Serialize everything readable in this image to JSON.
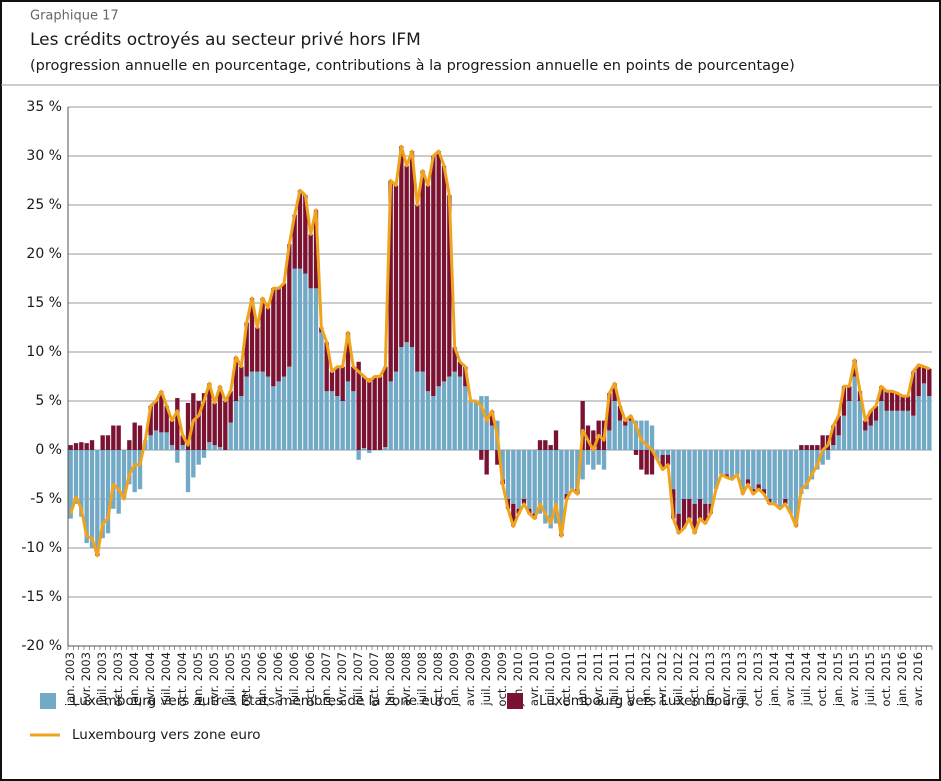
{
  "chart_data": {
    "type": "bar",
    "caption": "Graphique 17",
    "title": "Les crédits octroyés au secteur privé hors IFM",
    "subtitle": "(progression annuelle en pourcentage, contributions à la progression annuelle en points de pourcentage)",
    "categories": [
      "jan. 2003",
      null,
      null,
      "avr. 2003",
      null,
      null,
      "juil. 2003",
      null,
      null,
      "oct. 2003",
      null,
      null,
      "jan. 2004",
      null,
      null,
      "avr. 2004",
      null,
      null,
      "juil. 2004",
      null,
      null,
      "oct. 2004",
      null,
      null,
      "jan. 2005",
      null,
      null,
      "avr. 2005",
      null,
      null,
      "juil. 2005",
      null,
      null,
      "oct. 2005",
      null,
      null,
      "jan. 2006",
      null,
      null,
      "avr. 2006",
      null,
      null,
      "juil. 2006",
      null,
      null,
      "oct. 2006",
      null,
      null,
      "jan. 2007",
      null,
      null,
      "avr. 2007",
      null,
      null,
      "juil. 2007",
      null,
      null,
      "oct. 2007",
      null,
      null,
      "jan. 2008",
      null,
      null,
      "avr. 2008",
      null,
      null,
      "juil. 2008",
      null,
      null,
      "oct. 2008",
      null,
      null,
      "jan. 2009",
      null,
      null,
      "avr. 2009",
      null,
      null,
      "juil. 2009",
      null,
      null,
      "oct. 2009",
      null,
      null,
      "jan. 2010",
      null,
      null,
      "avr. 2010",
      null,
      null,
      "juil. 2010",
      null,
      null,
      "oct. 2010",
      null,
      null,
      "jan. 2011",
      null,
      null,
      "avr. 2011",
      null,
      null,
      "juil. 2011",
      null,
      null,
      "oct. 2011",
      null,
      null,
      "jan. 2012",
      null,
      null,
      "avr. 2012",
      null,
      null,
      "juil. 2012",
      null,
      null,
      "oct. 2012",
      null,
      null,
      "jan. 2013",
      null,
      null,
      "avr. 2013",
      null,
      null,
      "juil. 2013",
      null,
      null,
      "oct. 2013",
      null,
      null,
      "jan. 2014",
      null,
      null,
      "avr. 2014",
      null,
      null,
      "juil. 2014",
      null,
      null,
      "oct. 2014",
      null,
      null,
      "jan. 2015",
      null,
      null,
      "avr. 2015",
      null,
      null,
      "juil. 2015",
      null,
      null,
      "oct. 2015",
      null,
      null,
      "jan. 2016",
      null,
      null,
      "avr. 2016",
      null,
      null
    ],
    "series": [
      {
        "name": "Luxembourg vers autres États membres de la zone euro",
        "color": "#72a9c6",
        "kind": "bar",
        "values": [
          -7,
          -5.5,
          -6.8,
          -9.5,
          -10,
          -10.5,
          -9,
          -8.5,
          -6,
          -6.5,
          -5,
          -3.5,
          -4.3,
          -4,
          1,
          1.5,
          2,
          1.8,
          1.8,
          0.5,
          -1.3,
          0.5,
          -4.3,
          -2.8,
          -1.5,
          -0.8,
          0.8,
          0.5,
          0.3,
          0,
          2.8,
          5,
          5.5,
          7.5,
          8,
          8,
          8,
          7.5,
          6.5,
          7,
          7.5,
          8.5,
          18.5,
          18.5,
          18,
          16.5,
          16.5,
          12,
          6,
          6,
          5.5,
          5,
          7,
          6,
          -1,
          0.2,
          -0.3,
          0,
          0,
          0.3,
          7,
          8,
          10.5,
          11,
          10.5,
          8,
          8,
          6,
          5.5,
          6.5,
          7,
          7.5,
          8,
          7.5,
          6.5,
          5,
          5,
          5.5,
          5.5,
          2.5,
          3,
          -3,
          -5,
          -5.5,
          -6,
          -5,
          -6,
          -6.5,
          -6.5,
          -7.5,
          -8,
          -7.5,
          -8.5,
          -4.5,
          -4,
          -4,
          -3,
          -1.5,
          -2,
          -1.5,
          -2,
          2,
          5,
          3,
          2.5,
          3,
          3,
          3,
          3,
          2.5,
          -1,
          -0.5,
          -0.5,
          -4,
          -6.5,
          -5,
          -5,
          -5.5,
          -5,
          -5.5,
          -5.5,
          -4,
          -2.5,
          -2.5,
          -3,
          -2.5,
          -4.5,
          -3,
          -4,
          -3.5,
          -4,
          -5,
          -5.5,
          -6,
          -5,
          -6.5,
          -7.5,
          -4.5,
          -4,
          -3,
          -2,
          -1.5,
          -1,
          0.5,
          1.5,
          3.5,
          5,
          7.5,
          5,
          2,
          2.5,
          3,
          5,
          4,
          4,
          4,
          4,
          4,
          3.5,
          5.5,
          6.8,
          5.5
        ]
      },
      {
        "name": "Luxembourg vers Luxembourg",
        "color": "#7b1232",
        "kind": "bar",
        "values": [
          0.5,
          0.7,
          0.8,
          0.7,
          1,
          -0.3,
          1.5,
          1.5,
          2.5,
          2.5,
          0,
          1,
          2.8,
          2.5,
          0,
          3,
          3,
          4.2,
          2.7,
          2.5,
          5.3,
          1,
          4.8,
          5.8,
          5,
          5.8,
          6,
          4.3,
          6.2,
          5,
          3.2,
          4.5,
          3,
          5.5,
          7.5,
          4.5,
          7.5,
          7,
          10,
          9.5,
          9.5,
          12.5,
          5.5,
          8,
          8,
          5.5,
          8,
          0.5,
          5,
          2,
          3,
          3.5,
          5,
          2.5,
          9,
          7.3,
          7.3,
          7.5,
          7.5,
          8.2,
          20.5,
          19,
          20.5,
          18,
          20,
          17,
          20.5,
          21,
          24.5,
          24,
          22,
          18.5,
          2.5,
          1.5,
          2,
          0,
          0,
          -1,
          -2.5,
          1.5,
          -1.5,
          -0.5,
          -1,
          -2.3,
          -0.5,
          -0.5,
          -0.5,
          -0.5,
          1,
          1,
          0.5,
          2,
          -0.3,
          -0.5,
          0,
          -0.5,
          5,
          2.5,
          2,
          3,
          3,
          3.8,
          1.8,
          1.5,
          0.5,
          0.5,
          -0.5,
          -2,
          -2.5,
          -2.5,
          0,
          -1.5,
          -1,
          -3,
          -2,
          -3,
          -2,
          -3,
          -2,
          -2,
          -1,
          0,
          0,
          -0.3,
          0,
          0,
          0,
          -0.5,
          -0.5,
          -0.5,
          -0.5,
          -0.5,
          0,
          0,
          -0.5,
          0,
          -0.3,
          0.5,
          0.5,
          0.5,
          0.5,
          1.5,
          1.5,
          2,
          2,
          3,
          1.5,
          1.7,
          1,
          1,
          1.5,
          1.5,
          1.5,
          2,
          2,
          1.8,
          1.5,
          1.5,
          4.5,
          3.2,
          1.7,
          2.8
        ]
      },
      {
        "name": "Luxembourg vers zone euro",
        "color": "#f0a41e",
        "kind": "line",
        "values": [
          -6.5,
          -4.8,
          -6,
          -8.8,
          -9,
          -10.8,
          -7.5,
          -7,
          -3.5,
          -4,
          -5,
          -2.5,
          -1.5,
          -1.5,
          1,
          4.5,
          5,
          6,
          4.5,
          3,
          4,
          1.5,
          0.5,
          3,
          3.5,
          5,
          6.8,
          4.8,
          6.5,
          5,
          6,
          9.5,
          8.5,
          13,
          15.5,
          12.5,
          15.5,
          14.5,
          16.5,
          16.5,
          17,
          21,
          24,
          26.5,
          26,
          22,
          24.5,
          12.5,
          11,
          8,
          8.5,
          8.5,
          12,
          8.5,
          8,
          7.5,
          7,
          7.5,
          7.5,
          8.5,
          27.5,
          27,
          31,
          29,
          30.5,
          25,
          28.5,
          27,
          30,
          30.5,
          29,
          26,
          10.5,
          9,
          8.5,
          5,
          5,
          4.5,
          3,
          4,
          1.5,
          -3.5,
          -6,
          -7.8,
          -6.5,
          -5.5,
          -6.5,
          -7,
          -5.5,
          -6.5,
          -7.5,
          -5.5,
          -8.8,
          -5,
          -4,
          -4.5,
          2,
          1,
          0,
          1.5,
          1,
          5.8,
          6.8,
          4.5,
          3,
          3.5,
          2.5,
          1,
          0.5,
          0,
          -1,
          -2,
          -1.5,
          -7,
          -8.5,
          -8,
          -7,
          -8.5,
          -7,
          -7.5,
          -6.5,
          -4,
          -2.5,
          -2.8,
          -3,
          -2.5,
          -4.5,
          -3.5,
          -4.5,
          -4,
          -4.5,
          -5.5,
          -5.5,
          -6,
          -5.5,
          -6.5,
          -7.8,
          -4,
          -3.5,
          -2.5,
          -1.5,
          0,
          0.5,
          2.5,
          3.5,
          6.5,
          6.5,
          9.2,
          6,
          3,
          4,
          4.5,
          6.5,
          6,
          6,
          5.8,
          5.5,
          5.5,
          8,
          8.7,
          8.5,
          8.3
        ]
      }
    ],
    "ylim": [
      -20,
      35
    ],
    "yticks": [
      {
        "value": -20,
        "label": "-20 %"
      },
      {
        "value": -15,
        "label": "-15 %"
      },
      {
        "value": -10,
        "label": "-10 %"
      },
      {
        "value": -5,
        "label": "-5 %"
      },
      {
        "value": 0,
        "label": "0 %"
      },
      {
        "value": 5,
        "label": "5 %"
      },
      {
        "value": 10,
        "label": "10 %"
      },
      {
        "value": 15,
        "label": "15 %"
      },
      {
        "value": 20,
        "label": "20 %"
      },
      {
        "value": 25,
        "label": "25 %"
      },
      {
        "value": 30,
        "label": "30 %"
      },
      {
        "value": 35,
        "label": "35 %"
      }
    ],
    "grid": true,
    "stacked": true
  }
}
